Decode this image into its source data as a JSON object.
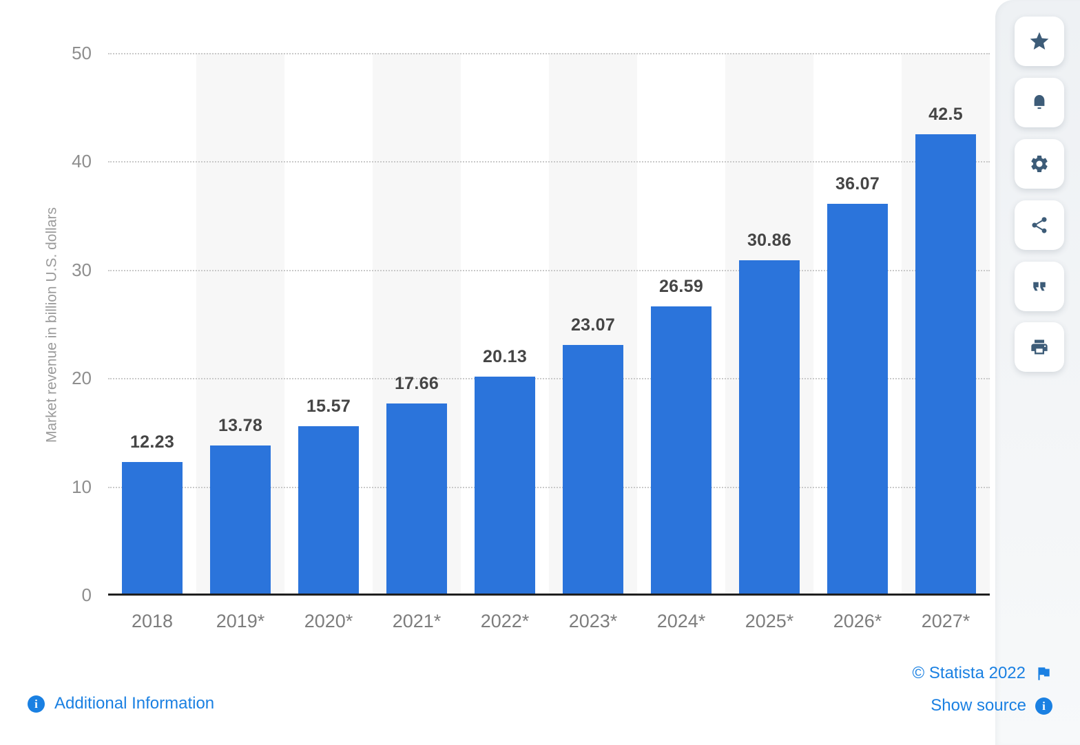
{
  "chart_data": {
    "type": "bar",
    "categories": [
      "2018",
      "2019*",
      "2020*",
      "2021*",
      "2022*",
      "2023*",
      "2024*",
      "2025*",
      "2026*",
      "2027*"
    ],
    "values": [
      12.23,
      13.78,
      15.57,
      17.66,
      20.13,
      23.07,
      26.59,
      30.86,
      36.07,
      42.5
    ],
    "title": "",
    "xlabel": "",
    "ylabel": "Market revenue in billion U.S. dollars",
    "ylim": [
      0,
      50
    ],
    "yticks": [
      0,
      10,
      20,
      30,
      40,
      50
    ],
    "grid": "horizontal dotted",
    "legend": "none",
    "bar_color": "#2b74db",
    "striped_columns": "alternate-light-gray"
  },
  "toolbar": {
    "buttons": [
      {
        "name": "favorite",
        "icon": "star-icon"
      },
      {
        "name": "alerts",
        "icon": "bell-icon"
      },
      {
        "name": "settings",
        "icon": "gear-icon"
      },
      {
        "name": "share",
        "icon": "share-icon"
      },
      {
        "name": "cite",
        "icon": "quote-icon"
      },
      {
        "name": "print",
        "icon": "print-icon"
      }
    ]
  },
  "footer": {
    "additional_information": "Additional Information",
    "copyright": "© Statista 2022",
    "show_source": "Show source"
  },
  "colors": {
    "bar": "#2b74db",
    "link": "#1a80e2",
    "toolbar_icon": "#3d5c78",
    "value_label": "#454545",
    "axis": "#1f1f1f",
    "stripe": "#f7f7f7"
  }
}
